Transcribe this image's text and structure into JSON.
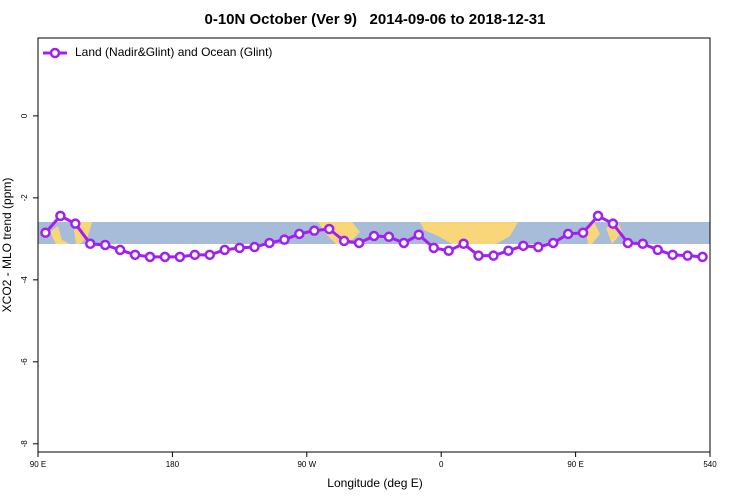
{
  "chart_data": {
    "type": "line",
    "title": "0-10N October (Ver 9)   2014-09-06 to 2018-12-31",
    "x_label": "Longitude (deg E)",
    "y_label": "XCO2 - MLO trend (ppm)",
    "x": [
      95,
      105,
      115,
      125,
      135,
      145,
      155,
      165,
      175,
      185,
      195,
      205,
      215,
      225,
      235,
      245,
      255,
      265,
      275,
      285,
      295,
      305,
      315,
      325,
      335,
      345,
      355,
      365,
      375,
      385,
      395,
      405,
      415,
      425,
      435,
      445,
      455,
      465,
      475,
      485,
      495,
      505,
      515,
      525,
      535
    ],
    "series": [
      {
        "name": "Land (Nadir&Glint) and Ocean (Glint)",
        "color": "#a020f0",
        "values": [
          -2.85,
          -2.44,
          -2.63,
          -3.12,
          -3.15,
          -3.27,
          -3.39,
          -3.44,
          -3.44,
          -3.44,
          -3.39,
          -3.39,
          -3.27,
          -3.22,
          -3.2,
          -3.1,
          -3.02,
          -2.88,
          -2.8,
          -2.76,
          -3.05,
          -3.1,
          -2.93,
          -2.95,
          -3.1,
          -2.9,
          -3.22,
          -3.29,
          -3.12,
          -3.41,
          -3.41,
          -3.29,
          -3.17,
          -3.2,
          -3.1,
          -2.88,
          -2.85,
          -2.44,
          -2.63,
          -3.1,
          -3.12,
          -3.27,
          -3.39,
          -3.41,
          -3.44
        ]
      }
    ],
    "xlim": [
      90,
      540
    ],
    "xticks": [
      {
        "value": 90,
        "label": "90 E"
      },
      180,
      {
        "value": 270,
        "label": "90 W"
      },
      {
        "value": 360,
        "label": "0"
      },
      {
        "value": 450,
        "label": "90 E"
      },
      540
    ],
    "ylim": [
      -8.2,
      1.9
    ],
    "yticks": [
      0,
      -2,
      -4,
      -6,
      -8
    ],
    "legend": "top-left"
  }
}
